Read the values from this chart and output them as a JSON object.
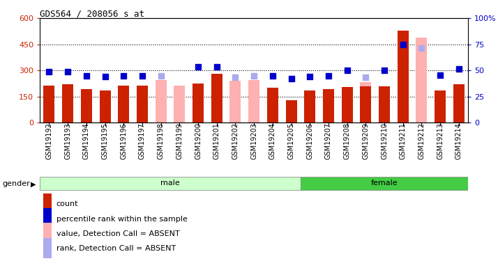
{
  "title": "GDS564 / 208056_s_at",
  "samples": [
    "GSM19192",
    "GSM19193",
    "GSM19194",
    "GSM19195",
    "GSM19196",
    "GSM19197",
    "GSM19198",
    "GSM19199",
    "GSM19200",
    "GSM19201",
    "GSM19202",
    "GSM19203",
    "GSM19204",
    "GSM19205",
    "GSM19206",
    "GSM19207",
    "GSM19208",
    "GSM19209",
    "GSM19210",
    "GSM19211",
    "GSM19212",
    "GSM19213",
    "GSM19214"
  ],
  "count_values": [
    215,
    220,
    195,
    185,
    215,
    215,
    null,
    null,
    225,
    280,
    null,
    null,
    200,
    130,
    185,
    195,
    205,
    210,
    210,
    530,
    null,
    185,
    220
  ],
  "percentile_values": [
    295,
    295,
    270,
    265,
    270,
    270,
    null,
    null,
    320,
    320,
    null,
    null,
    270,
    255,
    265,
    270,
    300,
    null,
    300,
    450,
    null,
    275,
    310
  ],
  "absent_value_values": [
    null,
    null,
    null,
    null,
    null,
    null,
    245,
    215,
    null,
    null,
    240,
    245,
    null,
    null,
    null,
    null,
    null,
    235,
    null,
    null,
    490,
    null,
    null
  ],
  "absent_rank_values": [
    null,
    null,
    null,
    null,
    null,
    null,
    270,
    null,
    null,
    null,
    260,
    270,
    null,
    null,
    null,
    null,
    null,
    260,
    null,
    null,
    430,
    null,
    null
  ],
  "gender": [
    "male",
    "male",
    "male",
    "male",
    "male",
    "male",
    "male",
    "male",
    "male",
    "male",
    "male",
    "male",
    "male",
    "male",
    "female",
    "female",
    "female",
    "female",
    "female",
    "female",
    "female",
    "female",
    "female"
  ],
  "ylim_left": [
    0,
    600
  ],
  "ylim_right": [
    0,
    100
  ],
  "yticks_left": [
    0,
    150,
    300,
    450,
    600
  ],
  "yticks_right": [
    0,
    25,
    50,
    75,
    100
  ],
  "ytick_labels_right": [
    "0",
    "25",
    "50",
    "75",
    "100%"
  ],
  "bar_color": "#cc2200",
  "absent_bar_color": "#ffb0b0",
  "dot_color": "#0000cc",
  "absent_dot_color": "#aaaaee",
  "male_bg": "#ccffcc",
  "female_bg": "#44cc44",
  "grid_yticks": [
    150,
    300,
    450
  ]
}
